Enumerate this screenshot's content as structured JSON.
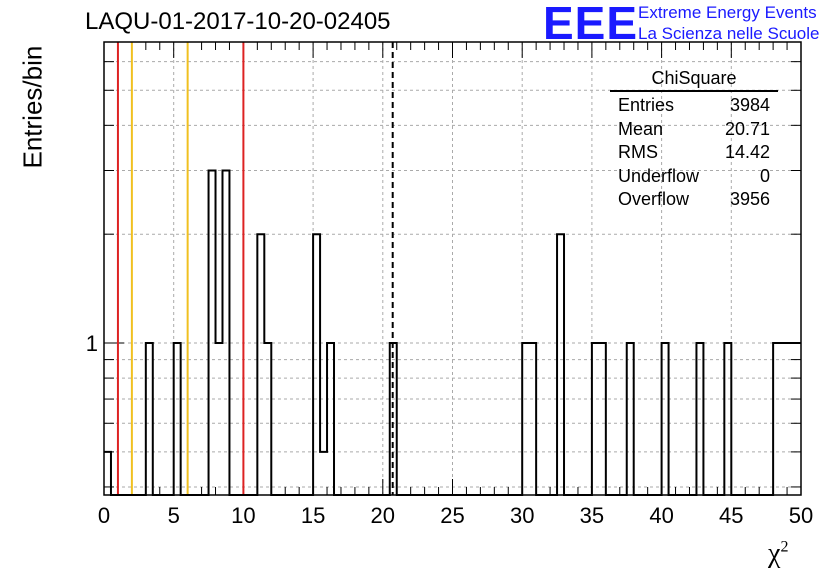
{
  "header": {
    "title": "LAQU-01-2017-10-20-02405",
    "logo_text": "EEE",
    "logo_line1": "Extreme Energy Events",
    "logo_line2": "La Scienza nelle Scuole",
    "logo_color": "#1a1aff"
  },
  "stats_box": {
    "name": "ChiSquare",
    "rows": [
      {
        "label": "Entries",
        "value": "3984"
      },
      {
        "label": "Mean",
        "value": "20.71"
      },
      {
        "label": "RMS",
        "value": "14.42"
      },
      {
        "label": "Underflow",
        "value": "0"
      },
      {
        "label": "Overflow",
        "value": "3956"
      }
    ]
  },
  "chart_data": {
    "type": "bar",
    "style": "step-histogram",
    "xlabel": "χ",
    "xlabel_sup": "2",
    "ylabel": "Entries/bin",
    "xlim": [
      0,
      50
    ],
    "ylim_log": [
      0.38,
      6.8
    ],
    "y_log_scale": true,
    "grid": true,
    "bin_width": 0.5,
    "x_ticks": [
      0,
      5,
      10,
      15,
      20,
      25,
      30,
      35,
      40,
      45,
      50
    ],
    "y_tick_labels": [
      {
        "value": 1,
        "label": "1"
      }
    ],
    "bins": [
      {
        "x": 0.0,
        "y": 0.5
      },
      {
        "x": 3.0,
        "y": 1
      },
      {
        "x": 5.0,
        "y": 1
      },
      {
        "x": 7.5,
        "y": 3
      },
      {
        "x": 8.0,
        "y": 1
      },
      {
        "x": 8.5,
        "y": 3
      },
      {
        "x": 11.0,
        "y": 2
      },
      {
        "x": 11.5,
        "y": 1
      },
      {
        "x": 15.0,
        "y": 2
      },
      {
        "x": 15.5,
        "y": 0.5
      },
      {
        "x": 16.0,
        "y": 1
      },
      {
        "x": 20.5,
        "y": 1
      },
      {
        "x": 30.0,
        "y": 1
      },
      {
        "x": 30.5,
        "y": 1
      },
      {
        "x": 32.5,
        "y": 2
      },
      {
        "x": 35.0,
        "y": 1
      },
      {
        "x": 35.5,
        "y": 1
      },
      {
        "x": 37.5,
        "y": 1
      },
      {
        "x": 40.0,
        "y": 1
      },
      {
        "x": 42.5,
        "y": 1
      },
      {
        "x": 44.5,
        "y": 1
      },
      {
        "x": 48.0,
        "y": 1
      },
      {
        "x": 48.5,
        "y": 1
      },
      {
        "x": 49.0,
        "y": 1
      },
      {
        "x": 49.5,
        "y": 1
      }
    ],
    "vertical_lines": [
      {
        "x": 1.0,
        "color": "#dd2222",
        "style": "solid"
      },
      {
        "x": 2.0,
        "color": "#f0c020",
        "style": "solid"
      },
      {
        "x": 6.0,
        "color": "#f0c020",
        "style": "solid"
      },
      {
        "x": 10.0,
        "color": "#dd2222",
        "style": "solid"
      },
      {
        "x": 20.71,
        "color": "#000000",
        "style": "dashed"
      }
    ]
  }
}
